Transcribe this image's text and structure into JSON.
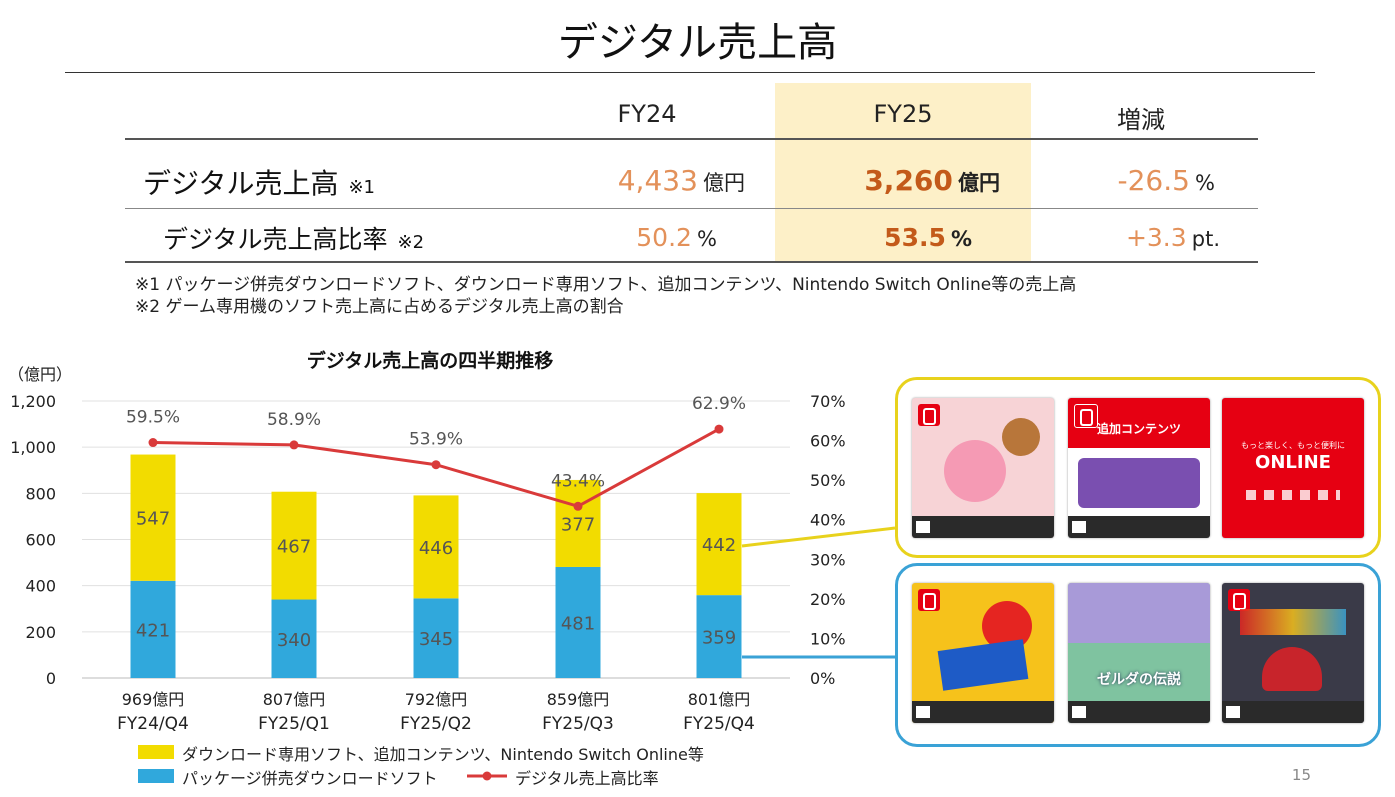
{
  "page": {
    "title": "デジタル売上高",
    "page_number": "15"
  },
  "summary_table": {
    "columns": [
      "FY24",
      "FY25",
      "増減"
    ],
    "rows": [
      {
        "label": "デジタル売上高",
        "note": "※1",
        "fy24": {
          "value": "4,433",
          "unit": "億円"
        },
        "fy25": {
          "value": "3,260",
          "unit": "億円"
        },
        "change": {
          "value": "-26.5",
          "unit": "%"
        }
      },
      {
        "label": "デジタル売上高比率",
        "note": "※2",
        "fy24": {
          "value": "50.2",
          "unit": "%"
        },
        "fy25": {
          "value": "53.5",
          "unit": "%"
        },
        "change": {
          "value": "+3.3",
          "unit": "pt."
        }
      }
    ],
    "footnotes": [
      "※1 パッケージ併売ダウンロードソフト、ダウンロード専用ソフト、追加コンテンツ、Nintendo Switch Online等の売上高",
      "※2 ゲーム専用機のソフト売上高に占めるデジタル売上高の割合"
    ]
  },
  "chart_data": {
    "type": "bar",
    "stacked": true,
    "title": "デジタル売上高の四半期推移",
    "y_unit_label": "（億円）",
    "categories": [
      "FY24/Q4",
      "FY25/Q1",
      "FY25/Q2",
      "FY25/Q3",
      "FY25/Q4"
    ],
    "totals": [
      "969億円",
      "807億円",
      "792億円",
      "859億円",
      "801億円"
    ],
    "ylim": [
      0,
      1200
    ],
    "y_ticks": [
      "0",
      "200",
      "400",
      "600",
      "800",
      "1,000",
      "1,200"
    ],
    "y2lim": [
      0,
      70
    ],
    "y2_ticks": [
      "0%",
      "10%",
      "20%",
      "30%",
      "40%",
      "50%",
      "60%",
      "70%"
    ],
    "series": [
      {
        "name": "パッケージ併売ダウンロードソフト",
        "values": [
          421,
          340,
          345,
          481,
          359
        ],
        "color": "#30a8dc"
      },
      {
        "name": "ダウンロード専用ソフト、追加コンテンツ、Nintendo Switch Online等",
        "values": [
          547,
          467,
          446,
          377,
          442
        ],
        "color": "#f2dc00"
      },
      {
        "name": "デジタル売上高比率",
        "type": "line",
        "axis": "right",
        "values": [
          59.5,
          58.9,
          53.9,
          43.4,
          62.9
        ],
        "labels": [
          "59.5%",
          "58.9%",
          "53.9%",
          "43.4%",
          "62.9%"
        ],
        "color": "#d93a3a"
      }
    ],
    "legend_position": "bottom"
  },
  "product_panels": {
    "download_only_color": "#e8d21c",
    "package_color": "#3aa2d6",
    "download_only_cards": [
      {
        "icon": "kirby-gourmet-fes-icon",
        "color": "#f7d3d6"
      },
      {
        "icon": "additional-content-card-icon",
        "color": "#ffffff",
        "header": "追加コンテンツ"
      },
      {
        "icon": "nintendo-switch-online-icon",
        "color": "#e60012",
        "caption": "もっと楽しく、もっと便利に",
        "logo": "ONLINE"
      }
    ],
    "package_cards": [
      {
        "icon": "super-mario-party-jamboree-icon",
        "color": "#f6c21b"
      },
      {
        "icon": "zelda-echoes-of-wisdom-icon",
        "color": "#7fc3a0",
        "title": "ゼルダの伝説"
      },
      {
        "icon": "mario-kart-8-deluxe-icon",
        "color": "#3a3a48"
      }
    ]
  }
}
